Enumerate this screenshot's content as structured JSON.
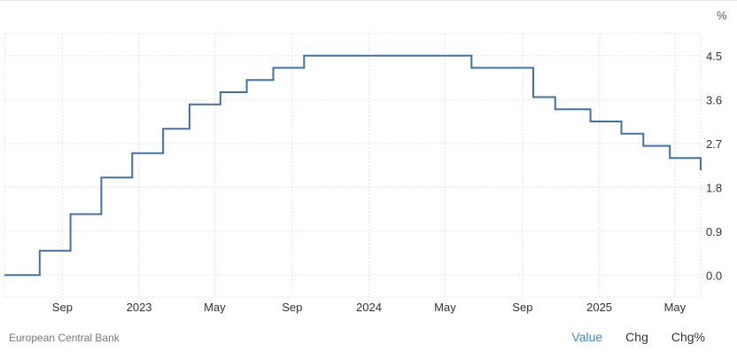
{
  "chart_data": {
    "type": "line",
    "step": true,
    "unit": "%",
    "series": [
      {
        "color": "#3f72aa",
        "points": [
          {
            "x": "2022-06-01",
            "y": 0.0
          },
          {
            "x": "2022-07-27",
            "y": 0.5
          },
          {
            "x": "2022-09-14",
            "y": 1.25
          },
          {
            "x": "2022-11-02",
            "y": 2.0
          },
          {
            "x": "2022-12-21",
            "y": 2.5
          },
          {
            "x": "2023-02-08",
            "y": 3.0
          },
          {
            "x": "2023-03-22",
            "y": 3.5
          },
          {
            "x": "2023-05-10",
            "y": 3.75
          },
          {
            "x": "2023-06-21",
            "y": 4.0
          },
          {
            "x": "2023-08-02",
            "y": 4.25
          },
          {
            "x": "2023-09-20",
            "y": 4.5
          },
          {
            "x": "2024-06-12",
            "y": 4.25
          },
          {
            "x": "2024-09-18",
            "y": 3.65
          },
          {
            "x": "2024-10-23",
            "y": 3.4
          },
          {
            "x": "2024-12-18",
            "y": 3.15
          },
          {
            "x": "2025-02-05",
            "y": 2.9
          },
          {
            "x": "2025-03-12",
            "y": 2.65
          },
          {
            "x": "2025-04-23",
            "y": 2.4
          },
          {
            "x": "2025-06-11",
            "y": 2.15
          }
        ]
      }
    ],
    "x_range": [
      "2022-06-01",
      "2025-06-11"
    ],
    "y_range": [
      -0.45,
      4.95
    ],
    "y_ticks": [
      0.0,
      0.9,
      1.8,
      2.7,
      3.6,
      4.5
    ],
    "y_tick_labels": [
      "0.0",
      "0.9",
      "1.8",
      "2.7",
      "3.6",
      "4.5"
    ],
    "x_ticks": [
      {
        "label": "Sep",
        "date": "2022-09-01"
      },
      {
        "label": "2023",
        "date": "2023-01-01"
      },
      {
        "label": "May",
        "date": "2023-05-01"
      },
      {
        "label": "Sep",
        "date": "2023-09-01"
      },
      {
        "label": "2024",
        "date": "2024-01-01"
      },
      {
        "label": "May",
        "date": "2024-05-01"
      },
      {
        "label": "Sep",
        "date": "2024-09-01"
      },
      {
        "label": "2025",
        "date": "2025-01-01"
      },
      {
        "label": "May",
        "date": "2025-05-01"
      }
    ],
    "grid": true,
    "y_axis_side": "right"
  },
  "footer": {
    "source": "European Central Bank",
    "tabs": [
      {
        "label": "Value",
        "active": true
      },
      {
        "label": "Chg",
        "active": false
      },
      {
        "label": "Chg%",
        "active": false
      }
    ]
  },
  "colors": {
    "line": "#3f72aa",
    "active_tab": "#3b8cd0",
    "grid": "#e3e3e3"
  }
}
